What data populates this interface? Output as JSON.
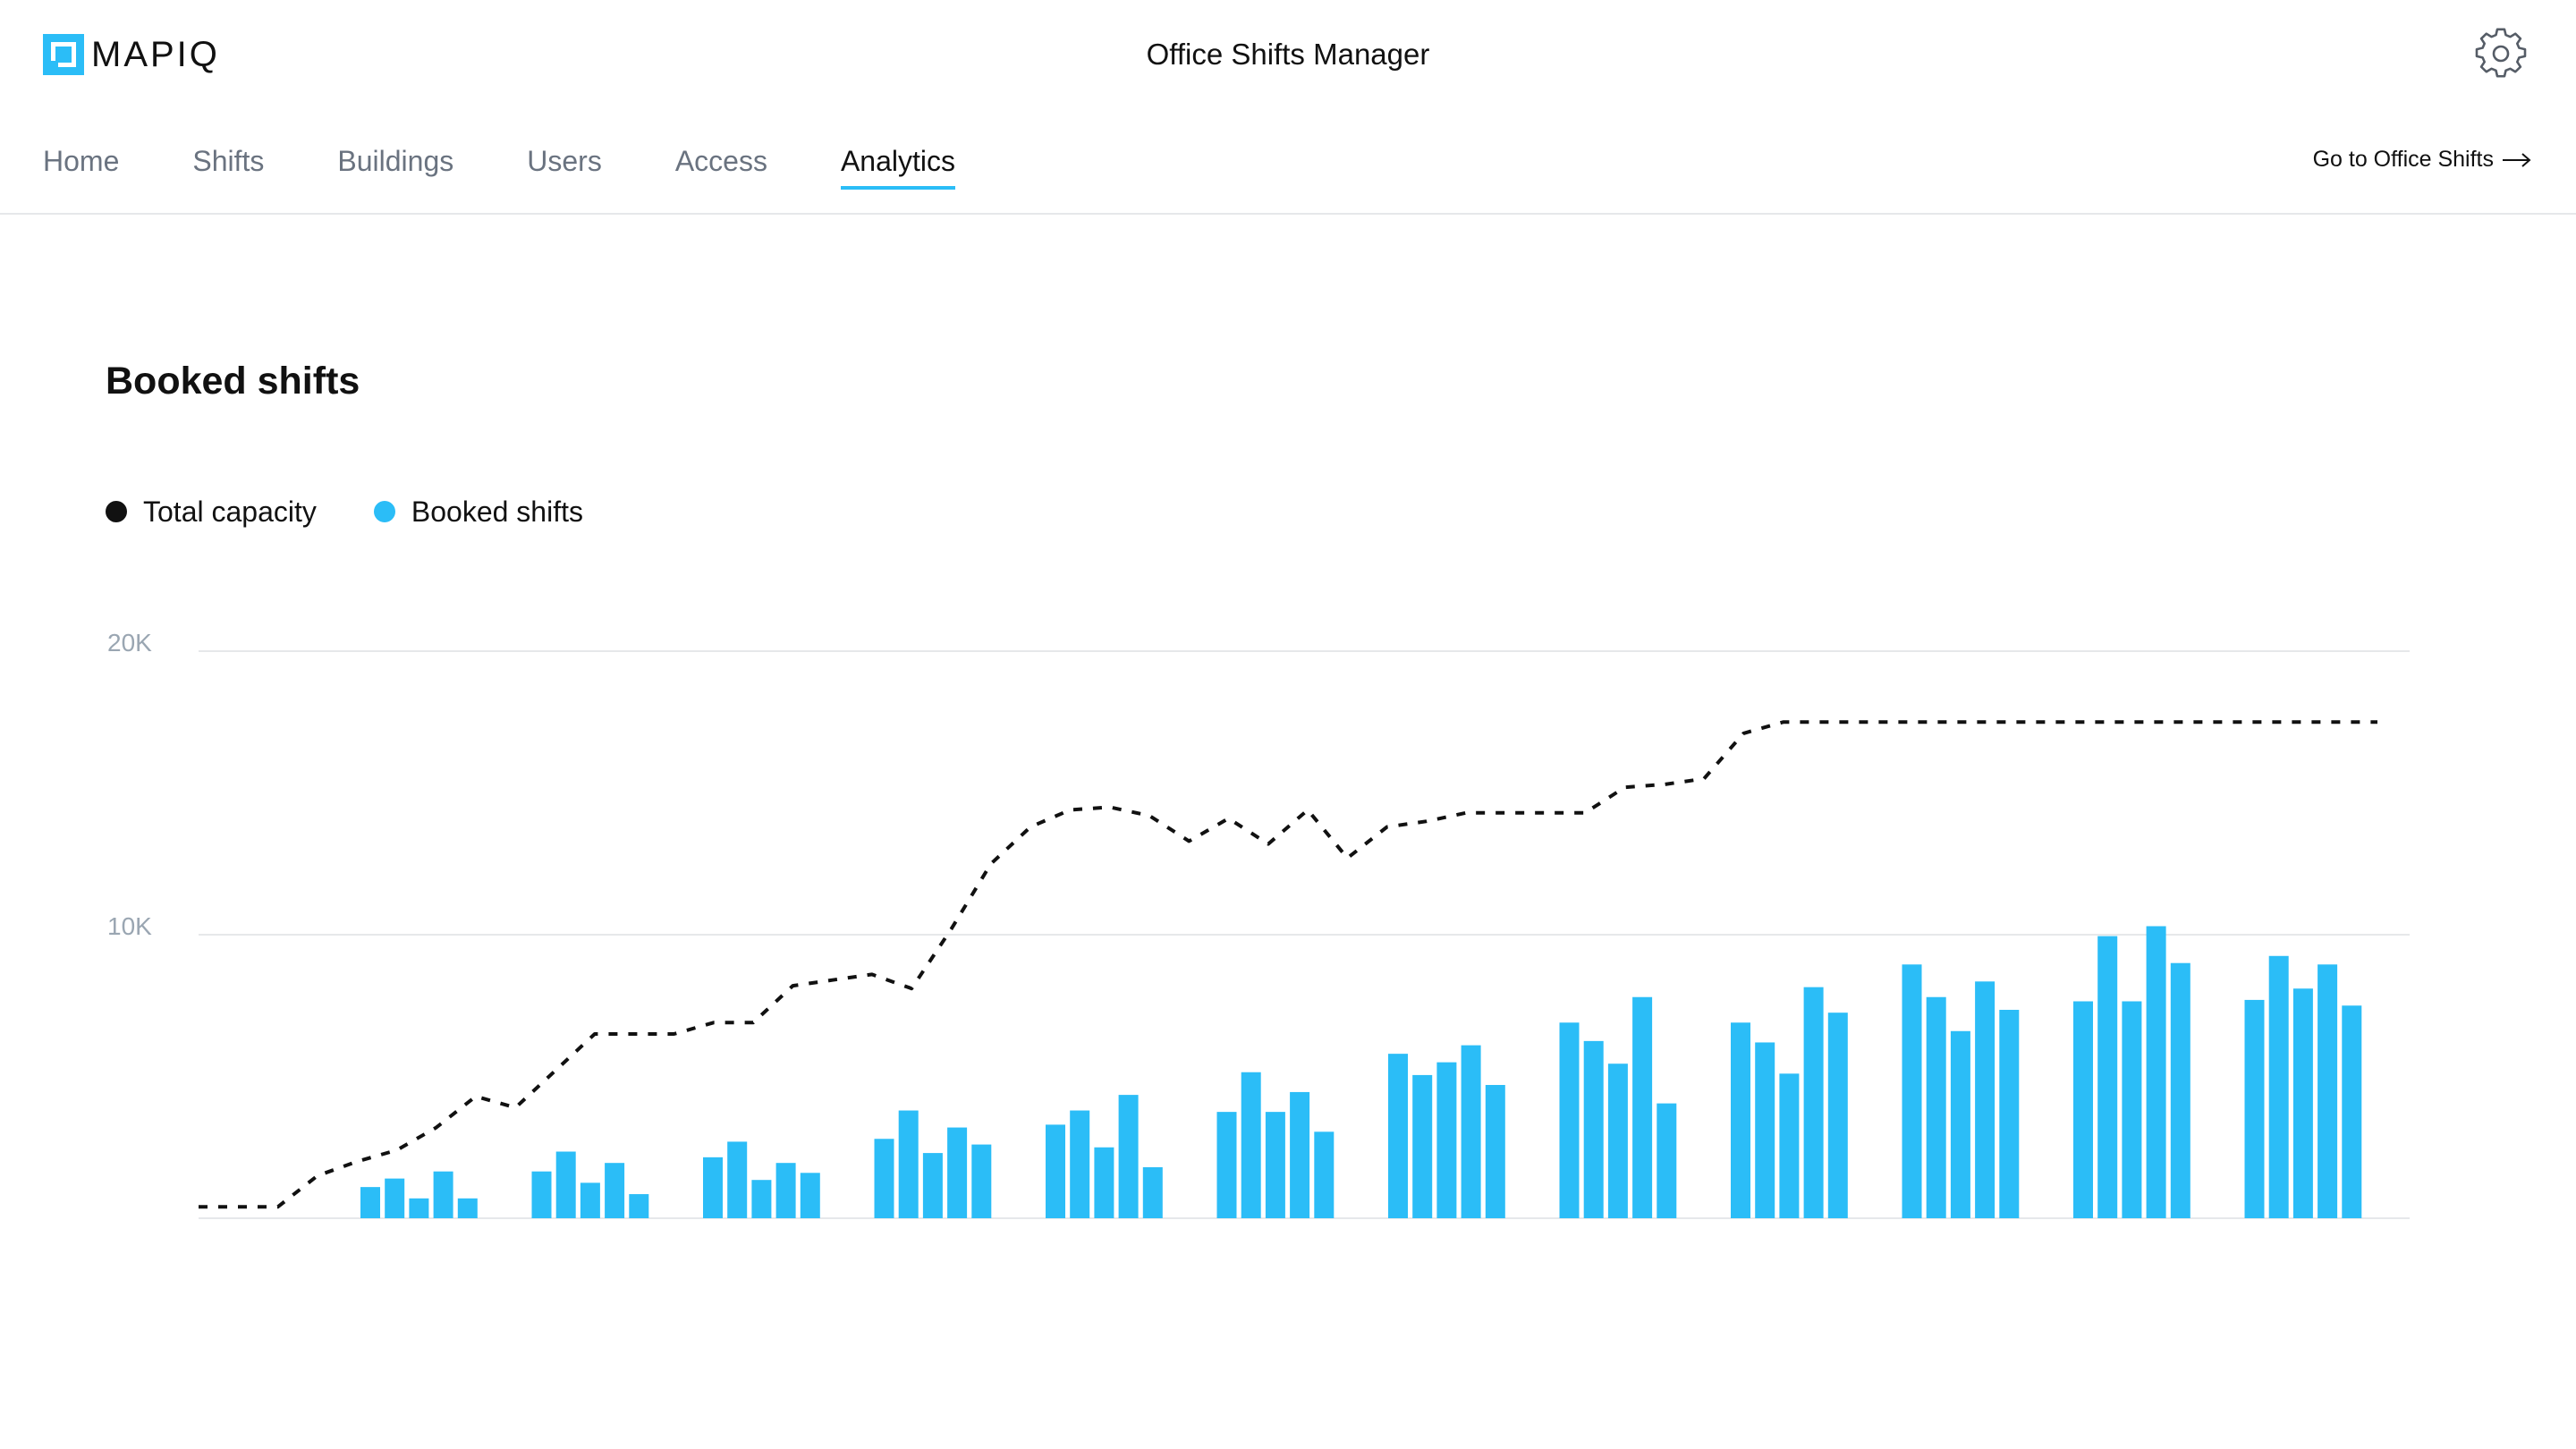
{
  "header": {
    "logo_text": "MAPIQ",
    "app_title": "Office Shifts Manager",
    "settings_icon": "gear-icon"
  },
  "nav": {
    "items": [
      {
        "label": "Home",
        "active": false
      },
      {
        "label": "Shifts",
        "active": false
      },
      {
        "label": "Buildings",
        "active": false
      },
      {
        "label": "Users",
        "active": false
      },
      {
        "label": "Access",
        "active": false
      },
      {
        "label": "Analytics",
        "active": true
      }
    ],
    "goto_label": "Go to Office Shifts",
    "goto_icon": "arrow-right-icon"
  },
  "colors": {
    "accent": "#2bbdf7",
    "capacity": "#111111",
    "grid": "#e6e8ea",
    "axis_label": "#9aa6b2"
  },
  "chart_data": {
    "type": "bar",
    "title": "Booked shifts",
    "legend_position": "top-left",
    "grid": true,
    "ylim": [
      0,
      20000
    ],
    "yticks": [
      {
        "value": 10000,
        "label": "10K"
      },
      {
        "value": 20000,
        "label": "20K"
      }
    ],
    "legend": [
      "Total capacity",
      "Booked shifts"
    ],
    "series": [
      {
        "name": "Booked shifts",
        "type": "bar",
        "groups": [
          [
            1100,
            1400,
            700,
            1650,
            700
          ],
          [
            1650,
            2350,
            1250,
            1950,
            850
          ],
          [
            2150,
            2700,
            1350,
            1950,
            1600
          ],
          [
            2800,
            3800,
            2300,
            3200,
            2600
          ],
          [
            3300,
            3800,
            2500,
            4350,
            1800
          ],
          [
            3750,
            5150,
            3750,
            4450,
            3050
          ],
          [
            5800,
            5050,
            5500,
            6100,
            4700
          ],
          [
            6900,
            6250,
            5450,
            7800,
            4050
          ],
          [
            6900,
            6200,
            5100,
            8150,
            7250
          ],
          [
            8950,
            7800,
            6600,
            8350,
            7350
          ],
          [
            7650,
            9950,
            7650,
            10300,
            9000
          ],
          [
            7700,
            9250,
            8100,
            8950,
            7500
          ]
        ]
      },
      {
        "name": "Total capacity",
        "type": "line",
        "style": "dashed",
        "values": [
          400,
          400,
          400,
          1500,
          2000,
          2400,
          3200,
          4300,
          3900,
          5200,
          6500,
          6500,
          6500,
          6900,
          6900,
          8200,
          8400,
          8600,
          8100,
          10200,
          12500,
          13800,
          14400,
          14500,
          14200,
          13300,
          14100,
          13200,
          14400,
          12700,
          13800,
          14000,
          14300,
          14300,
          14300,
          14300,
          15200,
          15300,
          15500,
          17100,
          17500,
          17500,
          17500,
          17500,
          17500,
          17500,
          17500,
          17500,
          17500,
          17500,
          17500,
          17500,
          17500,
          17500,
          17500,
          17500
        ]
      }
    ]
  }
}
